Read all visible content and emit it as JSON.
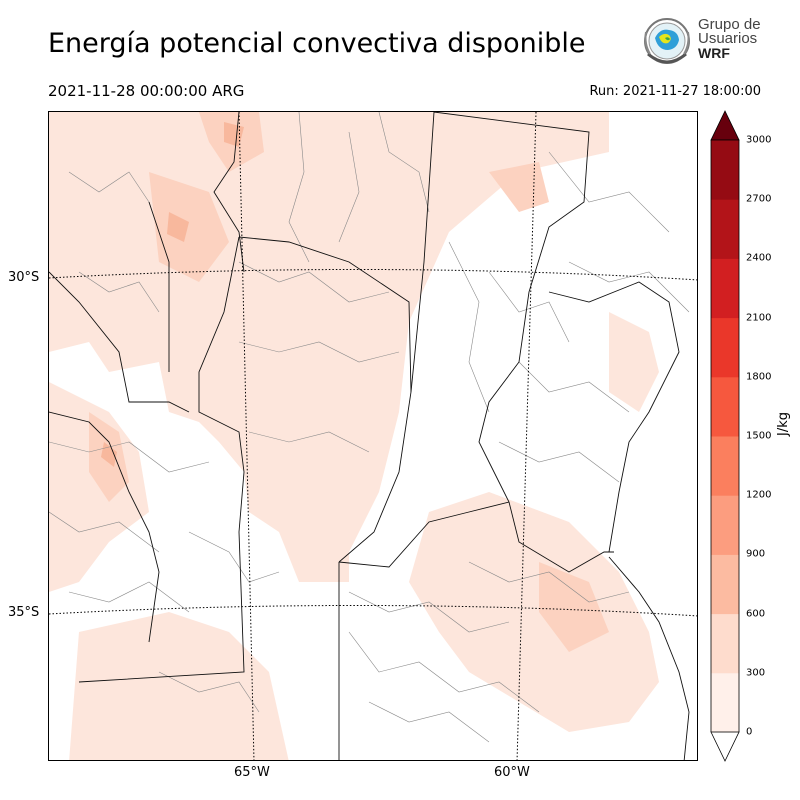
{
  "header": {
    "title": "Energía potencial convectiva disponible",
    "valid_time": "2021-11-28 00:00:00 ARG",
    "run_time": "Run: 2021-11-27 18:00:00"
  },
  "logo": {
    "line1": "Grupo de",
    "line2": "Usuarios",
    "line3": "WRF"
  },
  "axes": {
    "lat_labels": [
      "30°S",
      "35°S"
    ],
    "lon_labels": [
      "65°W",
      "60°W"
    ]
  },
  "colorbar": {
    "unit": "J/kg",
    "ticks": [
      "0",
      "300",
      "600",
      "900",
      "1200",
      "1500",
      "1800",
      "2100",
      "2400",
      "2700",
      "3000"
    ],
    "colors": [
      "#fff0ea",
      "#fedccd",
      "#fcbba1",
      "#fc9d7f",
      "#fb7f5e",
      "#f6583e",
      "#ea372a",
      "#d21f21",
      "#b31419",
      "#950b13",
      "#7a0510",
      "#67000d"
    ]
  },
  "map_colors": {
    "shade_light": "#fde6dc",
    "shade_mid": "#fcd2c0",
    "shade_strong": "#f8b89d",
    "province_border": "#111111",
    "department_border": "#8a8a8a"
  }
}
